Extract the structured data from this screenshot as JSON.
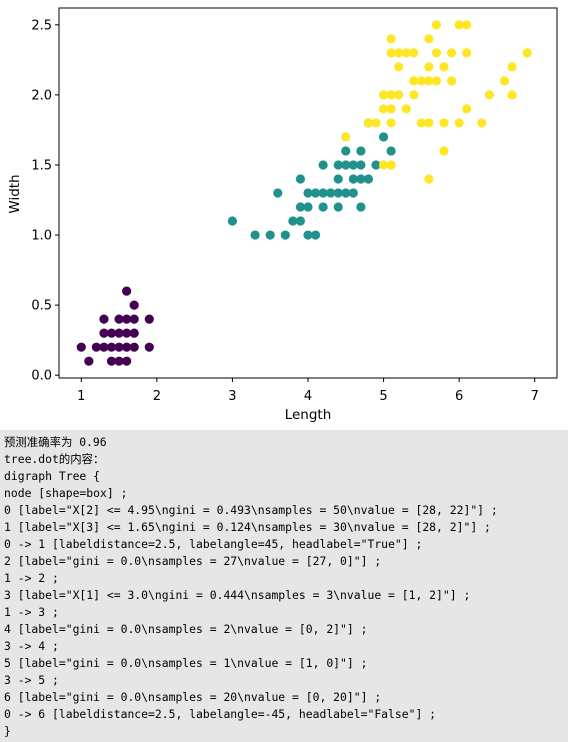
{
  "chart_data": {
    "type": "scatter",
    "title": "",
    "xlabel": "Length",
    "ylabel": "Width",
    "xlim": [
      0.705,
      7.295
    ],
    "ylim": [
      -0.02,
      2.62
    ],
    "xticks": [
      1,
      2,
      3,
      4,
      5,
      6,
      7
    ],
    "yticks": [
      0.0,
      0.5,
      1.0,
      1.5,
      2.0,
      2.5
    ],
    "ytick_labels": [
      "0.0",
      "0.5",
      "1.0",
      "1.5",
      "2.0",
      "2.5"
    ],
    "grid": false,
    "legend": false,
    "series": [
      {
        "color": "#440154",
        "points": [
          [
            1.0,
            0.2
          ],
          [
            1.1,
            0.1
          ],
          [
            1.2,
            0.2
          ],
          [
            1.3,
            0.2
          ],
          [
            1.3,
            0.3
          ],
          [
            1.3,
            0.4
          ],
          [
            1.4,
            0.1
          ],
          [
            1.4,
            0.2
          ],
          [
            1.4,
            0.3
          ],
          [
            1.5,
            0.1
          ],
          [
            1.5,
            0.2
          ],
          [
            1.5,
            0.4
          ],
          [
            1.6,
            0.2
          ],
          [
            1.6,
            0.4
          ],
          [
            1.6,
            0.6
          ],
          [
            1.6,
            0.1
          ],
          [
            1.7,
            0.2
          ],
          [
            1.7,
            0.3
          ],
          [
            1.7,
            0.4
          ],
          [
            1.7,
            0.5
          ],
          [
            1.9,
            0.2
          ],
          [
            1.9,
            0.4
          ],
          [
            1.5,
            0.3
          ],
          [
            1.6,
            0.3
          ]
        ]
      },
      {
        "color": "#21918c",
        "points": [
          [
            3.0,
            1.1
          ],
          [
            3.3,
            1.0
          ],
          [
            3.5,
            1.0
          ],
          [
            3.6,
            1.3
          ],
          [
            3.7,
            1.0
          ],
          [
            3.8,
            1.1
          ],
          [
            3.9,
            1.1
          ],
          [
            3.9,
            1.2
          ],
          [
            3.9,
            1.4
          ],
          [
            4.0,
            1.0
          ],
          [
            4.0,
            1.2
          ],
          [
            4.0,
            1.3
          ],
          [
            4.1,
            1.0
          ],
          [
            4.1,
            1.3
          ],
          [
            4.2,
            1.2
          ],
          [
            4.2,
            1.3
          ],
          [
            4.2,
            1.5
          ],
          [
            4.3,
            1.3
          ],
          [
            4.4,
            1.2
          ],
          [
            4.4,
            1.3
          ],
          [
            4.4,
            1.4
          ],
          [
            4.5,
            1.3
          ],
          [
            4.5,
            1.5
          ],
          [
            4.6,
            1.3
          ],
          [
            4.6,
            1.4
          ],
          [
            4.6,
            1.5
          ],
          [
            4.7,
            1.2
          ],
          [
            4.7,
            1.4
          ],
          [
            4.7,
            1.5
          ],
          [
            4.8,
            1.4
          ],
          [
            4.8,
            1.8
          ],
          [
            4.9,
            1.5
          ],
          [
            5.0,
            1.7
          ],
          [
            5.1,
            1.6
          ],
          [
            4.5,
            1.6
          ],
          [
            4.4,
            1.5
          ],
          [
            4.7,
            1.6
          ]
        ]
      },
      {
        "color": "#fde725",
        "points": [
          [
            4.5,
            1.7
          ],
          [
            4.8,
            1.8
          ],
          [
            4.9,
            1.8
          ],
          [
            5.0,
            1.5
          ],
          [
            5.0,
            1.9
          ],
          [
            5.0,
            2.0
          ],
          [
            5.1,
            1.5
          ],
          [
            5.1,
            1.8
          ],
          [
            5.1,
            1.9
          ],
          [
            5.1,
            2.0
          ],
          [
            5.1,
            2.3
          ],
          [
            5.1,
            2.4
          ],
          [
            5.2,
            2.0
          ],
          [
            5.2,
            2.3
          ],
          [
            5.3,
            1.9
          ],
          [
            5.3,
            2.3
          ],
          [
            5.4,
            2.1
          ],
          [
            5.4,
            2.3
          ],
          [
            5.5,
            1.8
          ],
          [
            5.5,
            2.1
          ],
          [
            5.6,
            1.4
          ],
          [
            5.6,
            1.8
          ],
          [
            5.6,
            2.1
          ],
          [
            5.6,
            2.2
          ],
          [
            5.6,
            2.4
          ],
          [
            5.7,
            2.1
          ],
          [
            5.7,
            2.3
          ],
          [
            5.7,
            2.5
          ],
          [
            5.8,
            1.6
          ],
          [
            5.8,
            1.8
          ],
          [
            5.8,
            2.2
          ],
          [
            5.9,
            2.1
          ],
          [
            5.9,
            2.3
          ],
          [
            6.0,
            1.8
          ],
          [
            6.0,
            2.5
          ],
          [
            6.1,
            1.9
          ],
          [
            6.1,
            2.3
          ],
          [
            6.1,
            2.5
          ],
          [
            6.3,
            1.8
          ],
          [
            6.4,
            2.0
          ],
          [
            6.6,
            2.1
          ],
          [
            6.7,
            2.0
          ],
          [
            6.7,
            2.2
          ],
          [
            6.9,
            2.3
          ],
          [
            5.4,
            2.0
          ],
          [
            5.2,
            2.2
          ]
        ]
      }
    ]
  },
  "output": {
    "lines": [
      "预测准确率为 0.96",
      "tree.dot的内容：",
      "digraph Tree {",
      "node [shape=box] ;",
      "0 [label=\"X[2] <= 4.95\\ngini = 0.493\\nsamples = 50\\nvalue = [28, 22]\"] ;",
      "1 [label=\"X[3] <= 1.65\\ngini = 0.124\\nsamples = 30\\nvalue = [28, 2]\"] ;",
      "0 -> 1 [labeldistance=2.5, labelangle=45, headlabel=\"True\"] ;",
      "2 [label=\"gini = 0.0\\nsamples = 27\\nvalue = [27, 0]\"] ;",
      "1 -> 2 ;",
      "3 [label=\"X[1] <= 3.0\\ngini = 0.444\\nsamples = 3\\nvalue = [1, 2]\"] ;",
      "1 -> 3 ;",
      "4 [label=\"gini = 0.0\\nsamples = 2\\nvalue = [0, 2]\"] ;",
      "3 -> 4 ;",
      "5 [label=\"gini = 0.0\\nsamples = 1\\nvalue = [1, 0]\"] ;",
      "3 -> 5 ;",
      "6 [label=\"gini = 0.0\\nsamples = 20\\nvalue = [0, 20]\"] ;",
      "0 -> 6 [labeldistance=2.5, labelangle=-45, headlabel=\"False\"] ;",
      "}"
    ]
  }
}
